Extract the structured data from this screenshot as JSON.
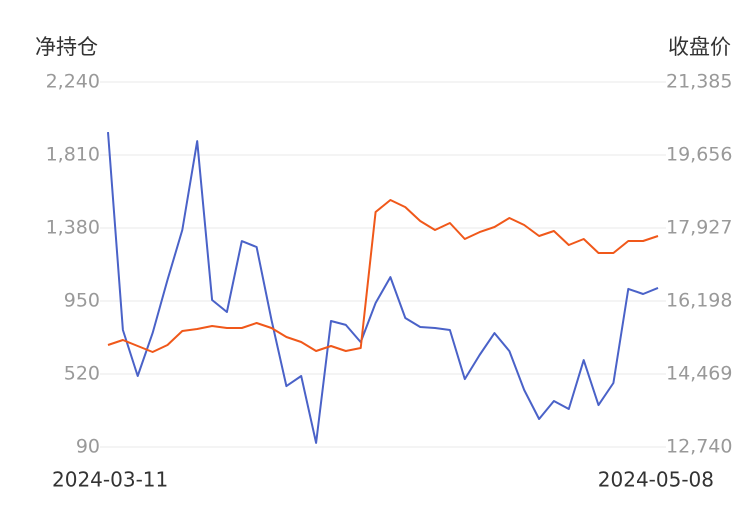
{
  "chart_data": {
    "type": "line",
    "y_label": "净持仓",
    "y2_label": "收盘价",
    "categories": [
      "2024-03-11",
      null,
      null,
      null,
      null,
      null,
      null,
      null,
      null,
      null,
      null,
      null,
      null,
      null,
      null,
      null,
      null,
      null,
      null,
      null,
      null,
      null,
      null,
      null,
      null,
      null,
      null,
      null,
      null,
      null,
      null,
      null,
      null,
      null,
      null,
      null,
      null,
      "2024-05-08"
    ],
    "ylim": [
      90,
      2240
    ],
    "yticks": [
      90,
      520,
      950,
      {
        "value": 1380,
        "label": "1,380"
      },
      {
        "value": 1810,
        "label": "1,810"
      },
      {
        "value": 2240,
        "label": "2,240"
      }
    ],
    "y2lim": [
      12740,
      21385
    ],
    "y2ticks": [
      {
        "value": 12740,
        "label": "12,740"
      },
      {
        "value": 14469,
        "label": "14,469"
      },
      {
        "value": 16198,
        "label": "16,198"
      },
      {
        "value": 17927,
        "label": "17,927"
      },
      {
        "value": 19656,
        "label": "19,656"
      },
      {
        "value": 21385,
        "label": "21,385"
      }
    ],
    "grid": true,
    "series": [
      {
        "name": "净持仓",
        "color": "#4a62c8",
        "values": [
          1945,
          779,
          508,
          761,
          1074,
          1368,
          1892,
          956,
          885,
          1303,
          1268,
          838,
          449,
          508,
          114,
          832,
          809,
          708,
          938,
          1091,
          850,
          797,
          791,
          779,
          490,
          632,
          761,
          655,
          426,
          255,
          361,
          314,
          602,
          337,
          467,
          1021,
          991,
          1027
        ]
      },
      {
        "name": "收盘价",
        "color": "#f0581a",
        "axis": "y2",
        "values": [
          15155,
          15274,
          15132,
          14990,
          15155,
          15487,
          15534,
          15605,
          15558,
          15558,
          15676,
          15558,
          15345,
          15226,
          15013,
          15132,
          15013,
          15084,
          18305,
          18589,
          18423,
          18092,
          17879,
          18045,
          17666,
          17831,
          17950,
          18163,
          17997,
          17737,
          17855,
          17524,
          17666,
          17334,
          17334,
          17618,
          17618,
          17737
        ]
      }
    ]
  }
}
